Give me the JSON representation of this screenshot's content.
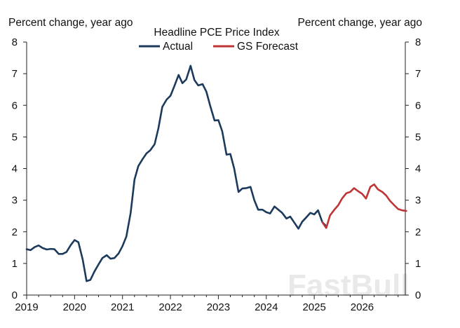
{
  "chart_data": {
    "type": "line",
    "title": "Headline PCE Price Index",
    "ylabel_left": "Percent change, year ago",
    "ylabel_right": "Percent change, year ago",
    "xlim": [
      2019.0,
      2026.9
    ],
    "ylim": [
      0,
      8
    ],
    "x_ticks": [
      "2019",
      "2020",
      "2021",
      "2022",
      "2023",
      "2024",
      "2025",
      "2026"
    ],
    "y_ticks": [
      "0",
      "1",
      "2",
      "3",
      "4",
      "5",
      "6",
      "7",
      "8"
    ],
    "grid": false,
    "legend_position": "top-center",
    "series": [
      {
        "name": "Actual",
        "color": "#1b3a5c",
        "points": [
          [
            2019.0,
            1.45
          ],
          [
            2019.08,
            1.42
          ],
          [
            2019.17,
            1.52
          ],
          [
            2019.25,
            1.57
          ],
          [
            2019.33,
            1.49
          ],
          [
            2019.42,
            1.44
          ],
          [
            2019.5,
            1.46
          ],
          [
            2019.58,
            1.45
          ],
          [
            2019.67,
            1.3
          ],
          [
            2019.75,
            1.3
          ],
          [
            2019.83,
            1.36
          ],
          [
            2019.92,
            1.58
          ],
          [
            2020.0,
            1.74
          ],
          [
            2020.08,
            1.67
          ],
          [
            2020.17,
            1.12
          ],
          [
            2020.25,
            0.44
          ],
          [
            2020.33,
            0.48
          ],
          [
            2020.42,
            0.76
          ],
          [
            2020.5,
            0.97
          ],
          [
            2020.58,
            1.17
          ],
          [
            2020.67,
            1.26
          ],
          [
            2020.75,
            1.15
          ],
          [
            2020.83,
            1.17
          ],
          [
            2020.92,
            1.32
          ],
          [
            2021.0,
            1.55
          ],
          [
            2021.08,
            1.85
          ],
          [
            2021.17,
            2.6
          ],
          [
            2021.25,
            3.65
          ],
          [
            2021.33,
            4.08
          ],
          [
            2021.42,
            4.3
          ],
          [
            2021.5,
            4.48
          ],
          [
            2021.58,
            4.58
          ],
          [
            2021.67,
            4.77
          ],
          [
            2021.75,
            5.28
          ],
          [
            2021.83,
            5.95
          ],
          [
            2021.92,
            6.18
          ],
          [
            2022.0,
            6.3
          ],
          [
            2022.08,
            6.6
          ],
          [
            2022.17,
            6.96
          ],
          [
            2022.25,
            6.7
          ],
          [
            2022.33,
            6.82
          ],
          [
            2022.42,
            7.25
          ],
          [
            2022.5,
            6.8
          ],
          [
            2022.58,
            6.63
          ],
          [
            2022.67,
            6.67
          ],
          [
            2022.75,
            6.43
          ],
          [
            2022.83,
            5.98
          ],
          [
            2022.92,
            5.52
          ],
          [
            2023.0,
            5.53
          ],
          [
            2023.08,
            5.18
          ],
          [
            2023.17,
            4.44
          ],
          [
            2023.25,
            4.46
          ],
          [
            2023.33,
            4.0
          ],
          [
            2023.42,
            3.26
          ],
          [
            2023.5,
            3.37
          ],
          [
            2023.58,
            3.38
          ],
          [
            2023.67,
            3.42
          ],
          [
            2023.75,
            3.0
          ],
          [
            2023.83,
            2.7
          ],
          [
            2023.92,
            2.7
          ],
          [
            2024.0,
            2.62
          ],
          [
            2024.08,
            2.58
          ],
          [
            2024.17,
            2.8
          ],
          [
            2024.25,
            2.7
          ],
          [
            2024.33,
            2.6
          ],
          [
            2024.42,
            2.42
          ],
          [
            2024.5,
            2.48
          ],
          [
            2024.58,
            2.3
          ],
          [
            2024.67,
            2.1
          ],
          [
            2024.75,
            2.32
          ],
          [
            2024.83,
            2.45
          ],
          [
            2024.92,
            2.6
          ],
          [
            2025.0,
            2.55
          ],
          [
            2025.08,
            2.68
          ],
          [
            2025.17,
            2.3
          ],
          [
            2025.25,
            2.18
          ]
        ]
      },
      {
        "name": "GS Forecast",
        "color": "#bf3536",
        "points": [
          [
            2025.17,
            2.3
          ],
          [
            2025.25,
            2.12
          ],
          [
            2025.33,
            2.52
          ],
          [
            2025.42,
            2.7
          ],
          [
            2025.5,
            2.84
          ],
          [
            2025.58,
            3.05
          ],
          [
            2025.67,
            3.22
          ],
          [
            2025.75,
            3.26
          ],
          [
            2025.83,
            3.38
          ],
          [
            2025.92,
            3.28
          ],
          [
            2026.0,
            3.2
          ],
          [
            2026.08,
            3.05
          ],
          [
            2026.17,
            3.42
          ],
          [
            2026.25,
            3.5
          ],
          [
            2026.33,
            3.34
          ],
          [
            2026.42,
            3.26
          ],
          [
            2026.5,
            3.15
          ],
          [
            2026.58,
            2.98
          ],
          [
            2026.67,
            2.84
          ],
          [
            2026.75,
            2.72
          ],
          [
            2026.83,
            2.68
          ],
          [
            2026.92,
            2.66
          ]
        ]
      }
    ]
  },
  "watermark": "FastBull"
}
